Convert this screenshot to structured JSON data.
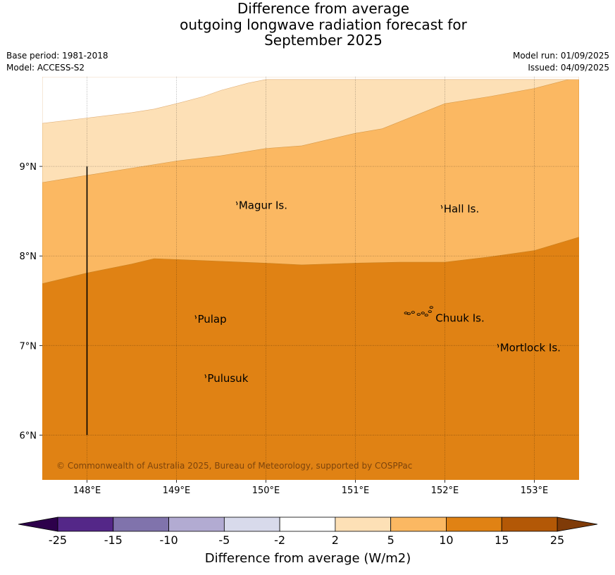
{
  "title_lines": [
    "Difference from average",
    "outgoing longwave radiation forecast for",
    "September 2025"
  ],
  "base_period": "Base period: 1981-2018",
  "model": "Model: ACCESS-S2",
  "model_run": "Model run: 01/09/2025",
  "issued": "Issued: 04/09/2025",
  "copyright": "© Commonwealth of Australia 2025, Bureau of Meteorology, supported by COSPPac",
  "map": {
    "lon_range": [
      147.5,
      153.5
    ],
    "lat_range": [
      5.5,
      10.0
    ],
    "lon_ticks": [
      148,
      149,
      150,
      151,
      152,
      153
    ],
    "lon_tick_labels": [
      "148°E",
      "149°E",
      "150°E",
      "151°E",
      "152°E",
      "153°E"
    ],
    "lat_ticks": [
      6,
      7,
      8,
      9
    ],
    "lat_tick_labels": [
      "6°N",
      "7°N",
      "8°N",
      "9°N"
    ],
    "gridlines": true,
    "fill_bands": [
      {
        "range": "2 to 5",
        "color": "#fde0b6"
      },
      {
        "range": "5 to 10",
        "color": "#fbb862"
      },
      {
        "range": "10 to 15",
        "color": "#e08214"
      }
    ],
    "boundary_5": [
      [
        147.5,
        8.82
      ],
      [
        149.0,
        9.06
      ],
      [
        149.5,
        9.12
      ],
      [
        150.0,
        9.2
      ],
      [
        150.4,
        9.23
      ],
      [
        151.0,
        9.37
      ],
      [
        151.3,
        9.42
      ],
      [
        152.0,
        9.7
      ],
      [
        152.5,
        9.78
      ],
      [
        153.0,
        9.87
      ],
      [
        153.5,
        10.0
      ]
    ],
    "boundary_10": [
      [
        147.5,
        7.69
      ],
      [
        148.0,
        7.81
      ],
      [
        148.5,
        7.91
      ],
      [
        148.75,
        7.97
      ],
      [
        149.0,
        7.96
      ],
      [
        150.0,
        7.92
      ],
      [
        150.4,
        7.9
      ],
      [
        151.0,
        7.92
      ],
      [
        151.5,
        7.93
      ],
      [
        152.0,
        7.93
      ],
      [
        152.5,
        7.99
      ],
      [
        153.0,
        8.06
      ],
      [
        153.5,
        8.21
      ]
    ],
    "boundary_2": [
      [
        147.5,
        9.48
      ],
      [
        148.0,
        9.54
      ],
      [
        148.5,
        9.6
      ],
      [
        148.75,
        9.64
      ],
      [
        149.0,
        9.7
      ],
      [
        149.3,
        9.78
      ],
      [
        149.5,
        9.85
      ],
      [
        149.8,
        9.93
      ],
      [
        150.0,
        9.97
      ],
      [
        153.5,
        9.97
      ]
    ],
    "vertical_line": {
      "lon": 148.0,
      "lat_from": 6.0,
      "lat_to": 9.0
    },
    "places": [
      {
        "name": "Magur Is.",
        "lon": 149.68,
        "lat": 8.56
      },
      {
        "name": "Hall Is.",
        "lon": 151.97,
        "lat": 8.52
      },
      {
        "name": "Pulap",
        "lon": 149.22,
        "lat": 7.29
      },
      {
        "name": "Chuuk Is.",
        "lon": 151.88,
        "lat": 7.3
      },
      {
        "name": "Mortlock Is.",
        "lon": 152.6,
        "lat": 6.97
      },
      {
        "name": "Pulusuk",
        "lon": 149.33,
        "lat": 6.63
      }
    ]
  },
  "colorbar": {
    "label": "Difference from average (W/m2)",
    "tick_labels": [
      "-25",
      "-15",
      "-10",
      "-5",
      "-2",
      "2",
      "5",
      "10",
      "15",
      "25"
    ],
    "under_color": "#2d004b",
    "over_color": "#7f3b08",
    "colors": [
      "#542788",
      "#8073ac",
      "#b2abd2",
      "#d8daeb",
      "#ffffff",
      "#fde0b6",
      "#fbb862",
      "#e08214",
      "#b35806"
    ]
  }
}
